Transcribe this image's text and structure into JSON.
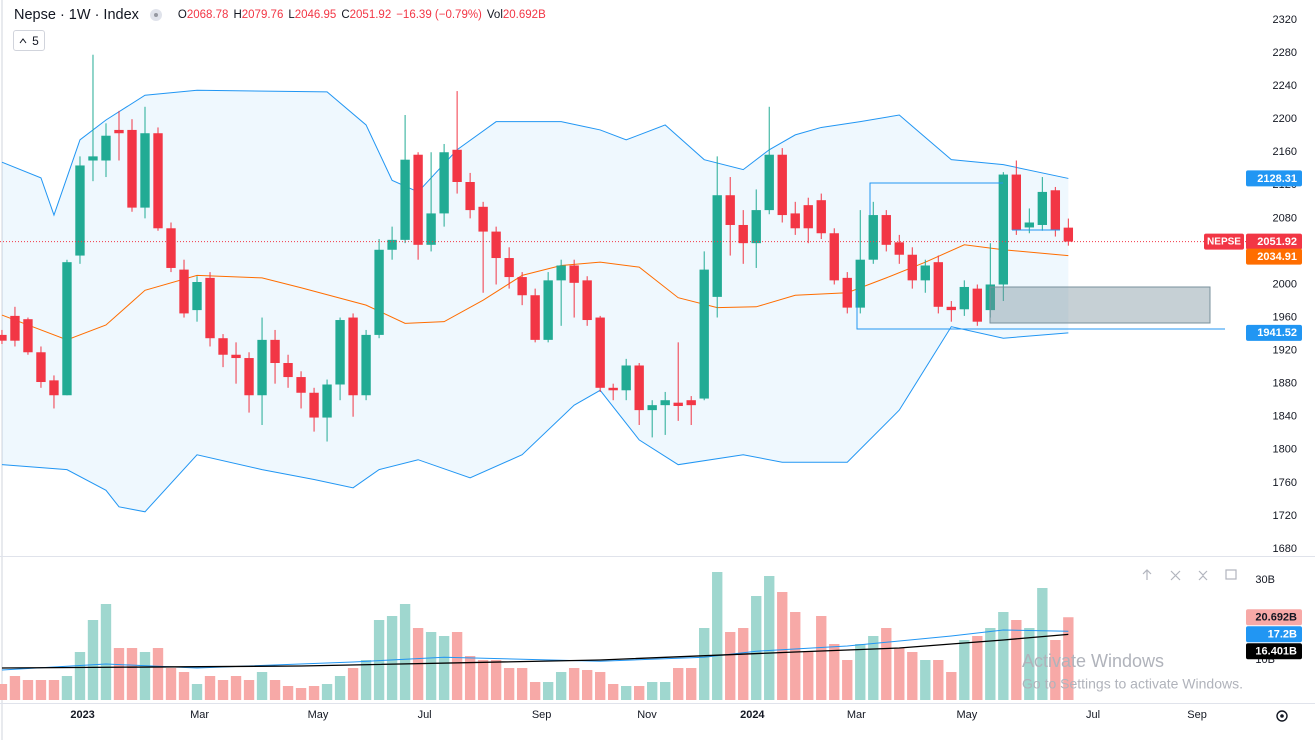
{
  "chart_data": {
    "type": "candlestick",
    "title": "Nepse · 1W · Index",
    "symbol": "NEPSE",
    "interval_badge": "5",
    "header_labels": {
      "open": "O",
      "high": "H",
      "low": "L",
      "close": "C",
      "volume": "Vol"
    },
    "change_label": "−16.39 (−0.79%)",
    "up_color": "#22ab94",
    "down_color": "#f23645",
    "open": [
      1939,
      1962,
      1958,
      1918,
      1884,
      1866,
      2035,
      2150,
      2150,
      2187,
      2187,
      2093,
      2183,
      2068,
      2018,
      1969,
      2008,
      1935,
      1915,
      1911,
      1866,
      1933,
      1905,
      1888,
      1869,
      1839,
      1879,
      1960,
      1866,
      1939,
      2042,
      2054,
      2157,
      2048,
      2086,
      2163,
      2124,
      2094,
      2064,
      2032,
      2009,
      1987,
      1933,
      2005,
      2023,
      2005,
      1960,
      1875,
      1872,
      1902,
      1848,
      1854,
      1857,
      1860,
      1862,
      1985,
      2108,
      2072,
      2050,
      2090,
      2157,
      2086,
      2096,
      2102,
      2062,
      2008,
      1972,
      2030,
      2084,
      2051,
      2036,
      2005,
      2027,
      1973,
      1970,
      1995,
      1969,
      2000,
      2133,
      2069,
      2072,
      2114,
      2068.78
    ],
    "high": [
      1945,
      1973,
      1960,
      1925,
      1890,
      2030,
      2155,
      2278,
      2195,
      2210,
      2200,
      2215,
      2190,
      2075,
      2030,
      2010,
      2015,
      1940,
      1930,
      1918,
      1960,
      1945,
      1915,
      1895,
      1875,
      1885,
      1960,
      1965,
      1945,
      2055,
      2070,
      2205,
      2160,
      2160,
      2170,
      2234,
      2135,
      2100,
      2070,
      2045,
      2015,
      1995,
      2015,
      2030,
      2030,
      2010,
      1962,
      1880,
      1910,
      1905,
      1860,
      1870,
      1930,
      1865,
      2040,
      2155,
      2130,
      2090,
      2115,
      2215,
      2165,
      2100,
      2105,
      2110,
      2068,
      2015,
      2090,
      2100,
      2090,
      2060,
      2045,
      2030,
      2035,
      1980,
      2005,
      2000,
      2050,
      2136,
      2150,
      2092,
      2130,
      2118,
      2079.76
    ],
    "low": [
      1928,
      1925,
      1915,
      1875,
      1850,
      1866,
      2025,
      2125,
      2130,
      2150,
      2088,
      2080,
      2065,
      2015,
      1960,
      1955,
      1925,
      1900,
      1880,
      1845,
      1830,
      1880,
      1875,
      1850,
      1822,
      1810,
      1860,
      1840,
      1860,
      1935,
      2030,
      2050,
      2030,
      2040,
      2070,
      2110,
      2080,
      1990,
      2000,
      1995,
      1975,
      1930,
      1930,
      1950,
      1960,
      1950,
      1870,
      1860,
      1860,
      1830,
      1815,
      1818,
      1835,
      1830,
      1860,
      1960,
      2035,
      2025,
      2020,
      2085,
      2075,
      2060,
      2050,
      2055,
      2000,
      1965,
      1965,
      2025,
      2040,
      2025,
      1995,
      1990,
      1965,
      1955,
      1962,
      1950,
      1960,
      1980,
      2060,
      2062,
      2065,
      2058,
      2046.95
    ],
    "close": [
      1932,
      1932,
      1918,
      1882,
      1866,
      2027,
      2144,
      2155,
      2180,
      2183,
      2093,
      2183,
      2068,
      2020,
      1965,
      2003,
      1935,
      1915,
      1911,
      1866,
      1933,
      1905,
      1888,
      1869,
      1839,
      1879,
      1957,
      1866,
      1939,
      2042,
      2054,
      2151,
      2048,
      2086,
      2160,
      2124,
      2090,
      2064,
      2032,
      2009,
      1987,
      1933,
      2005,
      2023,
      2002,
      1957,
      1875,
      1872,
      1902,
      1848,
      1854,
      1860,
      1853,
      1854,
      2018,
      2108,
      2072,
      2050,
      2090,
      2157,
      2084,
      2068,
      2068,
      2062,
      2005,
      1972,
      2030,
      2084,
      2048,
      2036,
      2005,
      2023,
      1973,
      1969,
      1997,
      1955,
      2000,
      2133,
      2066,
      2075,
      2112,
      2066,
      2051.92
    ],
    "xlim": [
      -0.15,
      95.2
    ],
    "time_ticks": [
      {
        "value": 6.2,
        "label": "2023"
      },
      {
        "value": 15.2,
        "label": "Mar"
      },
      {
        "value": 24.3,
        "label": "May"
      },
      {
        "value": 32.5,
        "label": "Jul"
      },
      {
        "value": 41.5,
        "label": "Sep"
      },
      {
        "value": 49.6,
        "label": "Nov"
      },
      {
        "value": 57.7,
        "label": "2024"
      },
      {
        "value": 65.7,
        "label": "Mar"
      },
      {
        "value": 74.2,
        "label": "May"
      },
      {
        "value": 83.9,
        "label": "Jul"
      },
      {
        "value": 91.9,
        "label": "Sep"
      }
    ],
    "ylim": [
      1671.5,
      2344.2
    ],
    "yticks": [
      1680,
      1720,
      1760,
      1800,
      1840,
      1880,
      1920,
      1960,
      2000,
      2040,
      2080,
      2120,
      2160,
      2200,
      2240,
      2280,
      2320
    ],
    "bands": [
      {
        "name": "upper",
        "color": "#2196f3",
        "x": [
          0,
          3,
          4,
          6,
          8,
          11,
          15,
          25,
          28,
          30,
          32,
          35,
          38,
          43,
          46,
          48,
          51,
          54,
          57,
          59,
          61,
          63,
          66,
          69,
          73,
          77,
          82
        ],
        "values": [
          2148,
          2129,
          2084,
          2175,
          2199,
          2229,
          2235,
          2233,
          2193,
          2126,
          2112,
          2163,
          2197,
          2197,
          2187,
          2175,
          2193,
          2151,
          2139,
          2163,
          2181,
          2190,
          2197,
          2205,
          2151,
          2145,
          2128.31
        ]
      },
      {
        "name": "basis",
        "color": "#ff6d00",
        "x": [
          0,
          5,
          8,
          11,
          15,
          20,
          23,
          28,
          31,
          34,
          37,
          40,
          43,
          46,
          49,
          52,
          55,
          58,
          61,
          65,
          68,
          71,
          74,
          77,
          82
        ],
        "values": [
          1963,
          1933,
          1951,
          1993,
          2011,
          2008,
          1996,
          1975,
          1953,
          1955,
          1981,
          2011,
          2023,
          2027,
          2021,
          1984,
          1972,
          1973,
          1987,
          1990,
          2008,
          2027,
          2048,
          2042,
          2034.91
        ]
      },
      {
        "name": "lower",
        "color": "#2196f3",
        "x": [
          0,
          5,
          8,
          9,
          11,
          15,
          20,
          24,
          27,
          29,
          32,
          36,
          40,
          44,
          46,
          49,
          52,
          57,
          60,
          65,
          69,
          73,
          77,
          82
        ],
        "values": [
          1782,
          1776,
          1751,
          1731,
          1725,
          1794,
          1776,
          1764,
          1754,
          1776,
          1788,
          1766,
          1794,
          1854,
          1872,
          1812,
          1782,
          1794,
          1785,
          1785,
          1848,
          1949,
          1935,
          1941.52
        ]
      }
    ],
    "band_fill": "#2196f3",
    "volume": {
      "values": [
        4,
        6,
        5,
        5,
        5,
        6,
        12,
        20,
        24,
        13,
        13,
        12,
        13,
        8,
        7,
        4,
        6,
        5,
        6,
        5,
        7,
        5,
        3.5,
        3,
        3.5,
        4,
        6,
        8,
        10,
        20,
        21,
        24,
        18,
        17,
        16,
        17,
        11,
        10,
        10,
        8,
        8,
        4.5,
        4.5,
        7,
        8,
        7.5,
        7,
        4,
        3.5,
        3.5,
        4.5,
        4.5,
        8,
        8,
        18,
        32,
        17,
        18,
        26,
        31,
        27,
        22,
        12,
        21,
        14,
        10,
        14,
        16,
        18,
        13,
        12,
        10,
        10,
        7,
        15,
        16,
        18,
        22,
        20,
        18,
        28,
        15,
        20.692
      ],
      "up_color": "#9fd7cf",
      "down_color": "#f7a9a7",
      "last_tag": {
        "value": 20.692,
        "label": "20.692B"
      },
      "ylim": [
        0,
        35
      ],
      "yticks": [
        {
          "value": 30,
          "label": "30B"
        },
        {
          "value": 10,
          "label": "10B"
        }
      ]
    },
    "volume_ma": [
      {
        "color": "#2196f3",
        "x": [
          0,
          8,
          15,
          27,
          34,
          46,
          54,
          58,
          65,
          73,
          77,
          82
        ],
        "values": [
          7.5,
          9,
          8,
          9.5,
          10.7,
          9.7,
          10.7,
          12.2,
          13.5,
          16,
          17.5,
          17.2
        ],
        "value_label": "17.2B"
      },
      {
        "color": "#000000",
        "x": [
          0,
          23,
          46,
          61,
          69,
          77,
          82
        ],
        "values": [
          8,
          8.5,
          10,
          12,
          13,
          15,
          16.401
        ],
        "value_label": "16.401B"
      }
    ],
    "watermark": {
      "title": "Activate Windows",
      "subtitle": "Go to Settings to activate Windows."
    }
  }
}
